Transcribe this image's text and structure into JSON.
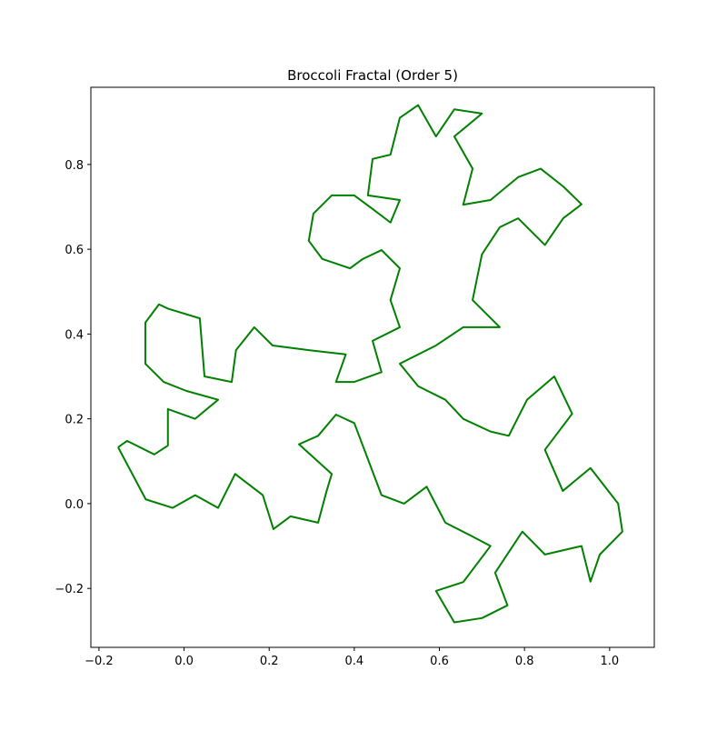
{
  "chart_data": {
    "type": "line",
    "title": "Broccoli Fractal (Order 5)",
    "xlim": [
      -0.219,
      1.105
    ],
    "ylim": [
      -0.339,
      0.982
    ],
    "xticks": [
      {
        "value": -0.2,
        "label": "−0.2"
      },
      {
        "value": 0.0,
        "label": "0.0"
      },
      0.2,
      0.4,
      0.6,
      0.8,
      {
        "value": 1.0,
        "label": "1.0"
      }
    ],
    "yticks": [
      {
        "value": -0.2,
        "label": "−0.2"
      },
      {
        "value": 0.0,
        "label": "0.0"
      },
      0.2,
      0.4,
      0.6,
      0.8
    ],
    "series": [
      {
        "color": "#008000",
        "x": [
          -0.155,
          -0.09,
          -0.027,
          0.026,
          0.08,
          0.12,
          0.185,
          0.21,
          0.25,
          0.315,
          0.335,
          0.347,
          0.27,
          0.315,
          0.357,
          0.4,
          0.464,
          0.517,
          0.57,
          0.614,
          0.677,
          0.72,
          0.656,
          0.592,
          0.635,
          0.7,
          0.76,
          0.731,
          0.795,
          0.848,
          0.934,
          0.955,
          0.977,
          1.03,
          1.02,
          0.955,
          0.89,
          0.848,
          0.912,
          0.87,
          0.806,
          0.763,
          0.72,
          0.656,
          0.614,
          0.55,
          0.507,
          0.592,
          0.656,
          0.742,
          0.678,
          0.7,
          0.742,
          0.785,
          0.848,
          0.891,
          0.934,
          0.891,
          0.838,
          0.785,
          0.72,
          0.656,
          0.678,
          0.635,
          0.7,
          0.635,
          0.592,
          0.55,
          0.507,
          0.485,
          0.443,
          0.432,
          0.507,
          0.485,
          0.443,
          0.4,
          0.347,
          0.304,
          0.293,
          0.325,
          0.39,
          0.42,
          0.464,
          0.507,
          0.485,
          0.507,
          0.443,
          0.464,
          0.4,
          0.357,
          0.38,
          0.293,
          0.208,
          0.165,
          0.122,
          0.112,
          0.048,
          0.037,
          -0.038,
          -0.059,
          -0.091,
          -0.091,
          -0.048,
          0.005,
          0.08,
          0.026,
          -0.038,
          -0.038,
          -0.07,
          -0.134,
          -0.155
        ],
        "values": [
          0.133,
          0.01,
          -0.01,
          0.02,
          -0.01,
          0.07,
          0.02,
          -0.06,
          -0.03,
          -0.045,
          0.03,
          0.07,
          0.14,
          0.16,
          0.21,
          0.19,
          0.02,
          0.0,
          0.04,
          -0.045,
          -0.077,
          -0.1,
          -0.185,
          -0.206,
          -0.28,
          -0.27,
          -0.24,
          -0.163,
          -0.066,
          -0.12,
          -0.1,
          -0.184,
          -0.12,
          -0.066,
          0.0,
          0.084,
          0.03,
          0.127,
          0.212,
          0.3,
          0.245,
          0.16,
          0.17,
          0.2,
          0.245,
          0.277,
          0.33,
          0.373,
          0.416,
          0.416,
          0.48,
          0.588,
          0.652,
          0.673,
          0.61,
          0.673,
          0.706,
          0.748,
          0.79,
          0.77,
          0.716,
          0.705,
          0.79,
          0.866,
          0.92,
          0.93,
          0.866,
          0.94,
          0.91,
          0.823,
          0.813,
          0.727,
          0.716,
          0.663,
          0.695,
          0.727,
          0.727,
          0.684,
          0.62,
          0.577,
          0.555,
          0.577,
          0.598,
          0.555,
          0.48,
          0.416,
          0.384,
          0.31,
          0.287,
          0.287,
          0.352,
          0.362,
          0.373,
          0.416,
          0.362,
          0.287,
          0.3,
          0.437,
          0.46,
          0.47,
          0.427,
          0.33,
          0.287,
          0.266,
          0.245,
          0.2,
          0.223,
          0.137,
          0.116,
          0.148,
          0.133
        ]
      }
    ]
  }
}
